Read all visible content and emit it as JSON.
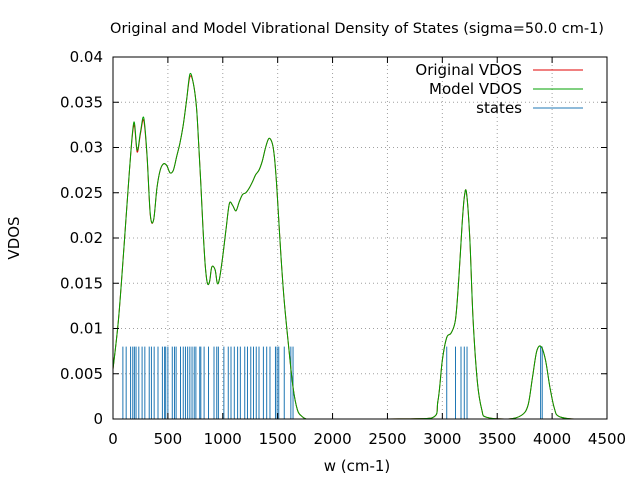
{
  "chart_data": {
    "type": "line",
    "title": "Original and Model Vibrational Density of States (sigma=50.0 cm-1)",
    "xlabel": "w (cm-1)",
    "ylabel": "VDOS",
    "xlim": [
      0,
      4500
    ],
    "ylim": [
      0,
      0.04
    ],
    "x_ticks": [
      "0",
      "500",
      "1000",
      "1500",
      "2000",
      "2500",
      "3000",
      "3500",
      "4000",
      "4500"
    ],
    "y_ticks": [
      "0",
      "0.005",
      "0.01",
      "0.015",
      "0.02",
      "0.025",
      "0.03",
      "0.035",
      "0.04"
    ],
    "grid": true,
    "legend_position": "top-right",
    "series": [
      {
        "name": "Original VDOS",
        "color": "#e00000",
        "x": [
          0,
          50,
          100,
          150,
          190,
          220,
          250,
          280,
          310,
          340,
          370,
          400,
          430,
          460,
          490,
          520,
          550,
          580,
          610,
          640,
          670,
          700,
          730,
          760,
          780,
          800,
          820,
          840,
          860,
          880,
          900,
          930,
          950,
          970,
          1000,
          1030,
          1060,
          1090,
          1120,
          1150,
          1180,
          1210,
          1240,
          1270,
          1300,
          1330,
          1360,
          1390,
          1420,
          1450,
          1470,
          1490,
          1510,
          1530,
          1560,
          1600,
          1640,
          1680,
          1720,
          1760,
          1800,
          2000,
          2500,
          2900,
          2960,
          3000,
          3040,
          3080,
          3120,
          3150,
          3180,
          3200,
          3220,
          3250,
          3280,
          3320,
          3360,
          3400,
          3600,
          3720,
          3780,
          3820,
          3860,
          3900,
          3940,
          3980,
          4020,
          4060,
          4200,
          4500
        ],
        "values": [
          0.0055,
          0.011,
          0.019,
          0.0275,
          0.0325,
          0.0295,
          0.0315,
          0.033,
          0.029,
          0.0225,
          0.022,
          0.0255,
          0.0275,
          0.0282,
          0.028,
          0.0272,
          0.0275,
          0.029,
          0.0305,
          0.0325,
          0.0352,
          0.0378,
          0.0372,
          0.0345,
          0.0305,
          0.026,
          0.021,
          0.017,
          0.015,
          0.0152,
          0.0168,
          0.0165,
          0.015,
          0.0155,
          0.018,
          0.021,
          0.0238,
          0.0236,
          0.023,
          0.024,
          0.0248,
          0.025,
          0.0255,
          0.0262,
          0.027,
          0.0275,
          0.0285,
          0.03,
          0.031,
          0.0305,
          0.029,
          0.026,
          0.022,
          0.018,
          0.013,
          0.008,
          0.0035,
          0.001,
          0.0003,
          0.0,
          0.0,
          0.0,
          0.0,
          0.0001,
          0.002,
          0.0065,
          0.009,
          0.0095,
          0.011,
          0.0155,
          0.0215,
          0.0245,
          0.025,
          0.02,
          0.011,
          0.004,
          0.001,
          0.0002,
          0.0,
          0.0004,
          0.0015,
          0.0045,
          0.0075,
          0.008,
          0.0065,
          0.0035,
          0.0012,
          0.0003,
          0.0,
          0.0
        ]
      },
      {
        "name": "Model VDOS",
        "color": "#00a000",
        "x": [
          0,
          50,
          100,
          150,
          190,
          220,
          250,
          280,
          310,
          340,
          370,
          400,
          430,
          460,
          490,
          520,
          550,
          580,
          610,
          640,
          670,
          700,
          730,
          760,
          780,
          800,
          820,
          840,
          860,
          880,
          900,
          930,
          950,
          970,
          1000,
          1030,
          1060,
          1090,
          1120,
          1150,
          1180,
          1210,
          1240,
          1270,
          1300,
          1330,
          1360,
          1390,
          1420,
          1450,
          1470,
          1490,
          1510,
          1530,
          1560,
          1600,
          1640,
          1680,
          1720,
          1760,
          1800,
          2000,
          2500,
          2900,
          2960,
          3000,
          3040,
          3080,
          3120,
          3150,
          3180,
          3200,
          3220,
          3250,
          3280,
          3320,
          3360,
          3400,
          3600,
          3720,
          3780,
          3820,
          3860,
          3900,
          3940,
          3980,
          4020,
          4060,
          4200,
          4500
        ],
        "values": [
          0.0055,
          0.011,
          0.019,
          0.0275,
          0.0328,
          0.0297,
          0.0317,
          0.0333,
          0.0292,
          0.0226,
          0.022,
          0.0255,
          0.0275,
          0.0282,
          0.028,
          0.0272,
          0.0275,
          0.029,
          0.0305,
          0.0325,
          0.0352,
          0.0381,
          0.0372,
          0.0345,
          0.0305,
          0.026,
          0.021,
          0.017,
          0.015,
          0.0152,
          0.0168,
          0.0165,
          0.015,
          0.0155,
          0.018,
          0.021,
          0.0238,
          0.0236,
          0.023,
          0.024,
          0.0248,
          0.025,
          0.0255,
          0.0262,
          0.027,
          0.0275,
          0.0285,
          0.03,
          0.031,
          0.0305,
          0.029,
          0.026,
          0.022,
          0.018,
          0.013,
          0.008,
          0.0035,
          0.001,
          0.0003,
          0.0,
          0.0,
          0.0,
          0.0,
          0.0001,
          0.002,
          0.0065,
          0.009,
          0.0095,
          0.011,
          0.0155,
          0.0215,
          0.0245,
          0.025,
          0.02,
          0.011,
          0.004,
          0.001,
          0.0002,
          0.0,
          0.0004,
          0.0015,
          0.0045,
          0.0075,
          0.008,
          0.0065,
          0.0035,
          0.0012,
          0.0003,
          0.0,
          0.0
        ]
      },
      {
        "name": "states",
        "type": "impulses",
        "color": "#1f77b4",
        "height": 0.008,
        "x": [
          90,
          120,
          160,
          180,
          195,
          210,
          235,
          265,
          290,
          330,
          350,
          375,
          410,
          450,
          470,
          480,
          500,
          540,
          560,
          575,
          615,
          640,
          660,
          680,
          700,
          720,
          740,
          755,
          790,
          800,
          830,
          870,
          920,
          945,
          960,
          1010,
          1050,
          1075,
          1105,
          1135,
          1160,
          1200,
          1225,
          1255,
          1280,
          1305,
          1330,
          1370,
          1400,
          1430,
          1480,
          1495,
          1510,
          1560,
          1620,
          1640,
          3040,
          3120,
          3170,
          3200,
          3225,
          3895,
          3910
        ]
      }
    ]
  }
}
